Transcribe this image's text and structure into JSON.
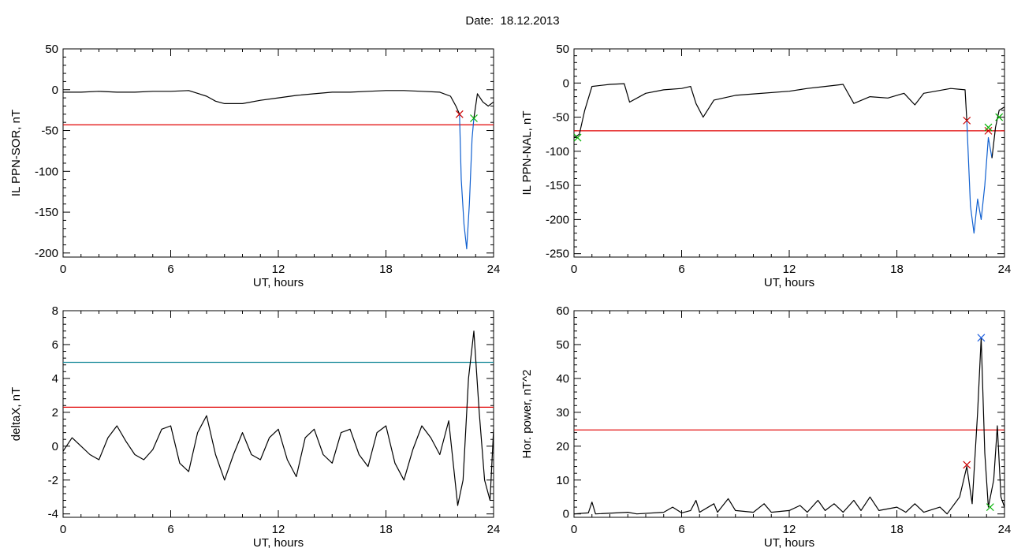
{
  "title": "Date:  18.12.2013",
  "colors": {
    "axis": "#000000",
    "trace": "#000000",
    "threshold_red": "#e00000",
    "threshold_teal": "#1a8a9a",
    "storm_blue": "#1060d0",
    "marker_red": "#cc0000",
    "marker_green": "#00b000",
    "marker_blue": "#2060e0"
  },
  "chart_data": [
    {
      "type": "line",
      "xlabel": "UT, hours",
      "ylabel": "IL PPN-SOR, nT",
      "xlim": [
        0,
        24
      ],
      "ylim": [
        -205,
        50
      ],
      "xticks": [
        0,
        6,
        12,
        18,
        24
      ],
      "yticks": [
        50,
        0,
        -50,
        -100,
        -150,
        -200
      ],
      "grid": false,
      "series": [
        {
          "color": "trace",
          "points": [
            [
              0,
              -3
            ],
            [
              1,
              -3
            ],
            [
              2,
              -2
            ],
            [
              3,
              -3
            ],
            [
              4,
              -3
            ],
            [
              5,
              -2
            ],
            [
              6,
              -2
            ],
            [
              7,
              -1
            ],
            [
              8,
              -8
            ],
            [
              8.5,
              -14
            ],
            [
              9,
              -17
            ],
            [
              10,
              -17
            ],
            [
              11,
              -13
            ],
            [
              12,
              -10
            ],
            [
              13,
              -7
            ],
            [
              14,
              -5
            ],
            [
              15,
              -3
            ],
            [
              16,
              -3
            ],
            [
              17,
              -2
            ],
            [
              18,
              -1
            ],
            [
              19,
              -1
            ],
            [
              20,
              -2
            ],
            [
              21,
              -3
            ],
            [
              21.6,
              -8
            ],
            [
              21.9,
              -20
            ],
            [
              22.1,
              -30
            ]
          ]
        },
        {
          "color": "storm_blue",
          "points": [
            [
              22.1,
              -30
            ],
            [
              22.2,
              -110
            ],
            [
              22.35,
              -165
            ],
            [
              22.5,
              -195
            ],
            [
              22.65,
              -140
            ],
            [
              22.8,
              -60
            ],
            [
              22.9,
              -35
            ]
          ]
        },
        {
          "color": "trace",
          "points": [
            [
              22.9,
              -35
            ],
            [
              23.1,
              -5
            ],
            [
              23.4,
              -15
            ],
            [
              23.7,
              -20
            ],
            [
              24,
              -15
            ]
          ]
        }
      ],
      "hlines": [
        {
          "y": -43,
          "color": "threshold_red"
        }
      ],
      "markers": [
        {
          "x": 22.1,
          "y": -30,
          "color": "marker_red"
        },
        {
          "x": 22.9,
          "y": -35,
          "color": "marker_green"
        }
      ]
    },
    {
      "type": "line",
      "xlabel": "UT, hours",
      "ylabel": "IL PPN-NAL, nT",
      "xlim": [
        0,
        24
      ],
      "ylim": [
        -255,
        50
      ],
      "xticks": [
        0,
        6,
        12,
        18,
        24
      ],
      "yticks": [
        50,
        0,
        -50,
        -100,
        -150,
        -200,
        -250
      ],
      "grid": false,
      "series": [
        {
          "color": "trace",
          "points": [
            [
              0,
              -80
            ],
            [
              0.3,
              -75
            ],
            [
              0.6,
              -40
            ],
            [
              1,
              -5
            ],
            [
              2,
              -2
            ],
            [
              2.8,
              -1
            ],
            [
              3.1,
              -28
            ],
            [
              4,
              -15
            ],
            [
              5,
              -10
            ],
            [
              6,
              -8
            ],
            [
              6.5,
              -5
            ],
            [
              6.8,
              -30
            ],
            [
              7.2,
              -50
            ],
            [
              7.8,
              -25
            ],
            [
              9,
              -18
            ],
            [
              10,
              -16
            ],
            [
              12,
              -12
            ],
            [
              13,
              -8
            ],
            [
              14,
              -5
            ],
            [
              15,
              -2
            ],
            [
              15.6,
              -30
            ],
            [
              16.5,
              -20
            ],
            [
              17.5,
              -22
            ],
            [
              18.4,
              -15
            ],
            [
              19,
              -32
            ],
            [
              19.5,
              -15
            ],
            [
              21,
              -8
            ],
            [
              21.8,
              -10
            ],
            [
              21.9,
              -55
            ]
          ]
        },
        {
          "color": "storm_blue",
          "points": [
            [
              21.9,
              -55
            ],
            [
              22.1,
              -180
            ],
            [
              22.3,
              -220
            ],
            [
              22.5,
              -170
            ],
            [
              22.7,
              -200
            ],
            [
              22.9,
              -150
            ],
            [
              23.1,
              -80
            ],
            [
              23.3,
              -110
            ]
          ]
        },
        {
          "color": "trace",
          "points": [
            [
              23.3,
              -110
            ],
            [
              23.5,
              -65
            ],
            [
              23.7,
              -40
            ],
            [
              24,
              -35
            ]
          ]
        }
      ],
      "hlines": [
        {
          "y": -70,
          "color": "threshold_red"
        }
      ],
      "markers": [
        {
          "x": 0.2,
          "y": -80,
          "color": "marker_green"
        },
        {
          "x": 21.9,
          "y": -55,
          "color": "marker_red"
        },
        {
          "x": 23.1,
          "y": -70,
          "color": "marker_red"
        },
        {
          "x": 23.1,
          "y": -65,
          "color": "marker_green"
        },
        {
          "x": 23.7,
          "y": -50,
          "color": "marker_green"
        }
      ]
    },
    {
      "type": "line",
      "xlabel": "UT, hours",
      "ylabel": "deltaX, nT",
      "xlim": [
        0,
        24
      ],
      "ylim": [
        -4.2,
        8
      ],
      "xticks": [
        0,
        6,
        12,
        18,
        24
      ],
      "yticks": [
        8,
        6,
        4,
        2,
        0,
        -2,
        -4
      ],
      "grid": false,
      "series": [
        {
          "color": "trace",
          "points": [
            [
              0,
              -0.3
            ],
            [
              0.5,
              0.5
            ],
            [
              1,
              0
            ],
            [
              1.5,
              -0.5
            ],
            [
              2,
              -0.8
            ],
            [
              2.5,
              0.5
            ],
            [
              3,
              1.2
            ],
            [
              3.5,
              0.3
            ],
            [
              4,
              -0.5
            ],
            [
              4.5,
              -0.8
            ],
            [
              5,
              -0.2
            ],
            [
              5.5,
              1
            ],
            [
              6,
              1.2
            ],
            [
              6.5,
              -1
            ],
            [
              7,
              -1.5
            ],
            [
              7.5,
              0.8
            ],
            [
              8,
              1.8
            ],
            [
              8.5,
              -0.5
            ],
            [
              9,
              -2
            ],
            [
              9.5,
              -0.5
            ],
            [
              10,
              0.8
            ],
            [
              10.5,
              -0.5
            ],
            [
              11,
              -0.8
            ],
            [
              11.5,
              0.5
            ],
            [
              12,
              1
            ],
            [
              12.5,
              -0.8
            ],
            [
              13,
              -1.8
            ],
            [
              13.5,
              0.5
            ],
            [
              14,
              1
            ],
            [
              14.5,
              -0.5
            ],
            [
              15,
              -1
            ],
            [
              15.5,
              0.8
            ],
            [
              16,
              1
            ],
            [
              16.5,
              -0.5
            ],
            [
              17,
              -1.2
            ],
            [
              17.5,
              0.8
            ],
            [
              18,
              1.2
            ],
            [
              18.5,
              -1
            ],
            [
              19,
              -2
            ],
            [
              19.5,
              -0.2
            ],
            [
              20,
              1.2
            ],
            [
              20.5,
              0.5
            ],
            [
              21,
              -0.5
            ],
            [
              21.5,
              1.5
            ],
            [
              22,
              -3.5
            ],
            [
              22.3,
              -2
            ],
            [
              22.6,
              4
            ],
            [
              22.9,
              6.8
            ],
            [
              23.2,
              2
            ],
            [
              23.5,
              -2
            ],
            [
              23.8,
              -3.2
            ],
            [
              24,
              1
            ]
          ]
        }
      ],
      "hlines": [
        {
          "y": 4.95,
          "color": "threshold_teal"
        },
        {
          "y": 2.3,
          "color": "threshold_red"
        }
      ],
      "markers": []
    },
    {
      "type": "line",
      "xlabel": "UT, hours",
      "ylabel": "Hor. power, nT^2",
      "xlim": [
        0,
        24
      ],
      "ylim": [
        -1,
        60
      ],
      "xticks": [
        0,
        6,
        12,
        18,
        24
      ],
      "yticks": [
        60,
        50,
        40,
        30,
        20,
        10,
        0
      ],
      "grid": false,
      "series": [
        {
          "color": "trace",
          "points": [
            [
              0,
              0
            ],
            [
              0.8,
              0.3
            ],
            [
              1,
              3.5
            ],
            [
              1.2,
              0
            ],
            [
              3,
              0.5
            ],
            [
              3.5,
              0
            ],
            [
              5,
              0.5
            ],
            [
              5.5,
              2
            ],
            [
              6,
              0.3
            ],
            [
              6.5,
              1
            ],
            [
              6.8,
              4
            ],
            [
              7,
              0.5
            ],
            [
              7.8,
              3
            ],
            [
              8,
              0.5
            ],
            [
              8.6,
              4.5
            ],
            [
              9,
              1
            ],
            [
              10,
              0.5
            ],
            [
              10.6,
              3
            ],
            [
              11,
              0.5
            ],
            [
              12,
              1
            ],
            [
              12.6,
              2.5
            ],
            [
              13,
              0.5
            ],
            [
              13.6,
              4
            ],
            [
              14,
              1
            ],
            [
              14.5,
              3
            ],
            [
              15,
              0.5
            ],
            [
              15.6,
              4
            ],
            [
              16,
              1
            ],
            [
              16.5,
              5
            ],
            [
              17,
              1
            ],
            [
              18,
              2
            ],
            [
              18.5,
              0.5
            ],
            [
              19,
              3
            ],
            [
              19.5,
              0.5
            ],
            [
              20.4,
              2
            ],
            [
              20.8,
              0
            ],
            [
              21.5,
              5
            ],
            [
              21.9,
              14
            ],
            [
              22.2,
              3
            ],
            [
              22.5,
              30
            ],
            [
              22.7,
              52
            ],
            [
              22.9,
              18
            ],
            [
              23.1,
              2
            ],
            [
              23.4,
              10
            ],
            [
              23.6,
              26
            ],
            [
              23.8,
              5
            ],
            [
              24,
              2
            ]
          ]
        }
      ],
      "hlines": [
        {
          "y": 24.8,
          "color": "threshold_red"
        }
      ],
      "markers": [
        {
          "x": 21.9,
          "y": 14.5,
          "color": "marker_red"
        },
        {
          "x": 22.7,
          "y": 52,
          "color": "marker_blue"
        },
        {
          "x": 23.2,
          "y": 2,
          "color": "marker_green"
        }
      ]
    }
  ]
}
